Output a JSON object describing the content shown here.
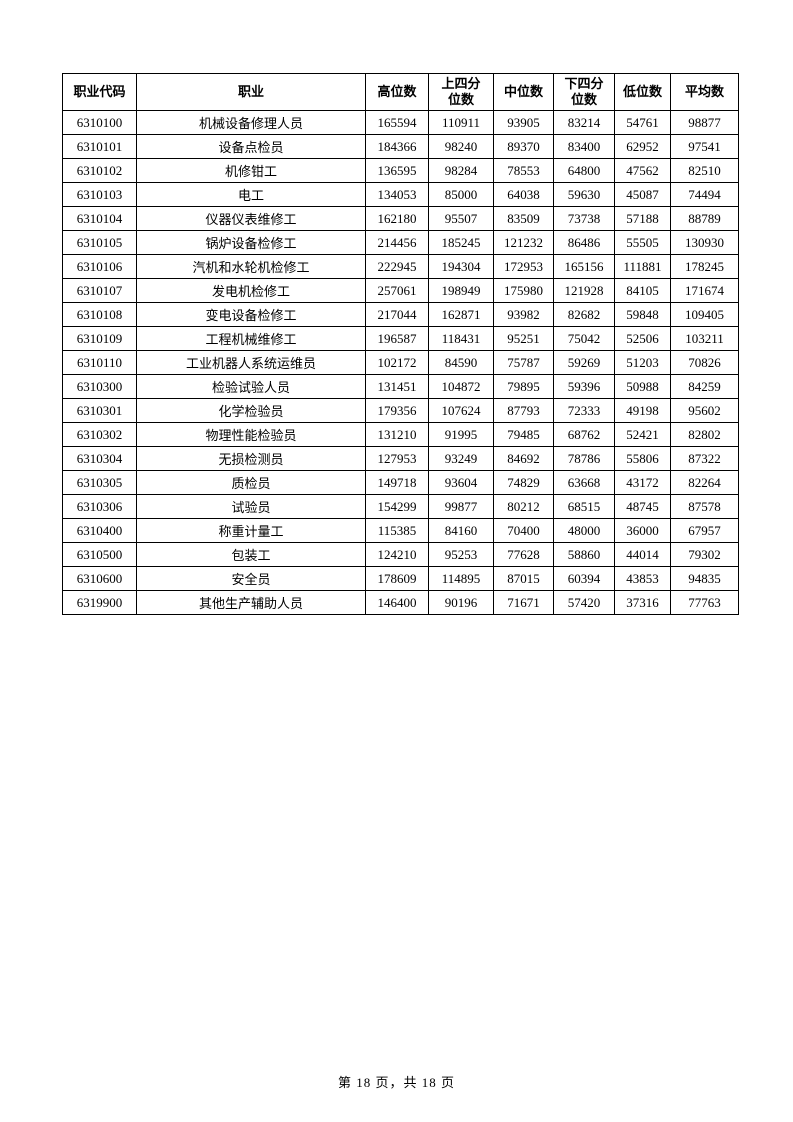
{
  "page": {
    "footer": "第 18 页，共 18 页"
  },
  "table": {
    "headers": [
      "职业代码",
      "职业",
      "高位数",
      "上四分\n位数",
      "中位数",
      "下四分\n位数",
      "低位数",
      "平均数"
    ],
    "rows": [
      [
        "6310100",
        "机械设备修理人员",
        "165594",
        "110911",
        "93905",
        "83214",
        "54761",
        "98877"
      ],
      [
        "6310101",
        "设备点检员",
        "184366",
        "98240",
        "89370",
        "83400",
        "62952",
        "97541"
      ],
      [
        "6310102",
        "机修钳工",
        "136595",
        "98284",
        "78553",
        "64800",
        "47562",
        "82510"
      ],
      [
        "6310103",
        "电工",
        "134053",
        "85000",
        "64038",
        "59630",
        "45087",
        "74494"
      ],
      [
        "6310104",
        "仪器仪表维修工",
        "162180",
        "95507",
        "83509",
        "73738",
        "57188",
        "88789"
      ],
      [
        "6310105",
        "锅炉设备检修工",
        "214456",
        "185245",
        "121232",
        "86486",
        "55505",
        "130930"
      ],
      [
        "6310106",
        "汽机和水轮机检修工",
        "222945",
        "194304",
        "172953",
        "165156",
        "111881",
        "178245"
      ],
      [
        "6310107",
        "发电机检修工",
        "257061",
        "198949",
        "175980",
        "121928",
        "84105",
        "171674"
      ],
      [
        "6310108",
        "变电设备检修工",
        "217044",
        "162871",
        "93982",
        "82682",
        "59848",
        "109405"
      ],
      [
        "6310109",
        "工程机械维修工",
        "196587",
        "118431",
        "95251",
        "75042",
        "52506",
        "103211"
      ],
      [
        "6310110",
        "工业机器人系统运维员",
        "102172",
        "84590",
        "75787",
        "59269",
        "51203",
        "70826"
      ],
      [
        "6310300",
        "检验试验人员",
        "131451",
        "104872",
        "79895",
        "59396",
        "50988",
        "84259"
      ],
      [
        "6310301",
        "化学检验员",
        "179356",
        "107624",
        "87793",
        "72333",
        "49198",
        "95602"
      ],
      [
        "6310302",
        "物理性能检验员",
        "131210",
        "91995",
        "79485",
        "68762",
        "52421",
        "82802"
      ],
      [
        "6310304",
        "无损检测员",
        "127953",
        "93249",
        "84692",
        "78786",
        "55806",
        "87322"
      ],
      [
        "6310305",
        "质检员",
        "149718",
        "93604",
        "74829",
        "63668",
        "43172",
        "82264"
      ],
      [
        "6310306",
        "试验员",
        "154299",
        "99877",
        "80212",
        "68515",
        "48745",
        "87578"
      ],
      [
        "6310400",
        "称重计量工",
        "115385",
        "84160",
        "70400",
        "48000",
        "36000",
        "67957"
      ],
      [
        "6310500",
        "包装工",
        "124210",
        "95253",
        "77628",
        "58860",
        "44014",
        "79302"
      ],
      [
        "6310600",
        "安全员",
        "178609",
        "114895",
        "87015",
        "60394",
        "43853",
        "94835"
      ],
      [
        "6319900",
        "其他生产辅助人员",
        "146400",
        "90196",
        "71671",
        "57420",
        "37316",
        "77763"
      ]
    ]
  },
  "chart_data": {
    "type": "table",
    "title": "",
    "columns": [
      "职业代码",
      "职业",
      "高位数",
      "上四分位数",
      "中位数",
      "下四分位数",
      "低位数",
      "平均数"
    ],
    "rows": [
      [
        "6310100",
        "机械设备修理人员",
        165594,
        110911,
        93905,
        83214,
        54761,
        98877
      ],
      [
        "6310101",
        "设备点检员",
        184366,
        98240,
        89370,
        83400,
        62952,
        97541
      ],
      [
        "6310102",
        "机修钳工",
        136595,
        98284,
        78553,
        64800,
        47562,
        82510
      ],
      [
        "6310103",
        "电工",
        134053,
        85000,
        64038,
        59630,
        45087,
        74494
      ],
      [
        "6310104",
        "仪器仪表维修工",
        162180,
        95507,
        83509,
        73738,
        57188,
        88789
      ],
      [
        "6310105",
        "锅炉设备检修工",
        214456,
        185245,
        121232,
        86486,
        55505,
        130930
      ],
      [
        "6310106",
        "汽机和水轮机检修工",
        222945,
        194304,
        172953,
        165156,
        111881,
        178245
      ],
      [
        "6310107",
        "发电机检修工",
        257061,
        198949,
        175980,
        121928,
        84105,
        171674
      ],
      [
        "6310108",
        "变电设备检修工",
        217044,
        162871,
        93982,
        82682,
        59848,
        109405
      ],
      [
        "6310109",
        "工程机械维修工",
        196587,
        118431,
        95251,
        75042,
        52506,
        103211
      ],
      [
        "6310110",
        "工业机器人系统运维员",
        102172,
        84590,
        75787,
        59269,
        51203,
        70826
      ],
      [
        "6310300",
        "检验试验人员",
        131451,
        104872,
        79895,
        59396,
        50988,
        84259
      ],
      [
        "6310301",
        "化学检验员",
        179356,
        107624,
        87793,
        72333,
        49198,
        95602
      ],
      [
        "6310302",
        "物理性能检验员",
        131210,
        91995,
        79485,
        68762,
        52421,
        82802
      ],
      [
        "6310304",
        "无损检测员",
        127953,
        93249,
        84692,
        78786,
        55806,
        87322
      ],
      [
        "6310305",
        "质检员",
        149718,
        93604,
        74829,
        63668,
        43172,
        82264
      ],
      [
        "6310306",
        "试验员",
        154299,
        99877,
        80212,
        68515,
        48745,
        87578
      ],
      [
        "6310400",
        "称重计量工",
        115385,
        84160,
        70400,
        48000,
        36000,
        67957
      ],
      [
        "6310500",
        "包装工",
        124210,
        95253,
        77628,
        58860,
        44014,
        79302
      ],
      [
        "6310600",
        "安全员",
        178609,
        114895,
        87015,
        60394,
        43853,
        94835
      ],
      [
        "6319900",
        "其他生产辅助人员",
        146400,
        90196,
        71671,
        57420,
        37316,
        77763
      ]
    ]
  }
}
